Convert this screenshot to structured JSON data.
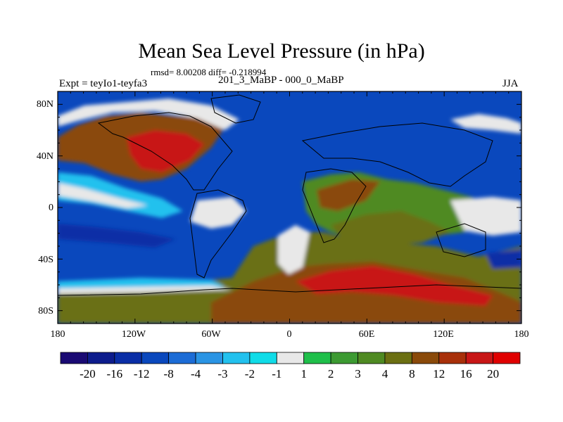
{
  "title": "Mean Sea Level Pressure (in hPa)",
  "stats": "rmsd= 8.00208 diff= -0.218994",
  "subtitle": "201_3_MaBP - 000_0_MaBP",
  "experiment": "Expt = teyIo1-teyfa3",
  "season": "JJA",
  "lat_labels": [
    "80N",
    "40N",
    "0",
    "40S",
    "80S"
  ],
  "lon_labels": [
    "180",
    "120W",
    "60W",
    "0",
    "60E",
    "120E",
    "180"
  ],
  "colorbar": {
    "labels": [
      "-20",
      "-16",
      "-12",
      "-8",
      "-4",
      "-3",
      "-2",
      "-1",
      "1",
      "2",
      "3",
      "4",
      "8",
      "12",
      "16",
      "20"
    ],
    "colors": [
      "#1a0a73",
      "#0d1c8c",
      "#0a2ea6",
      "#0a48bd",
      "#1c6cd6",
      "#2a94e4",
      "#22c1ee",
      "#10dce8",
      "#e8e8e8",
      "#1fbf4a",
      "#3c9a32",
      "#4f8a22",
      "#6b6f12",
      "#8a4a0a",
      "#a8300a",
      "#c81616",
      "#e00000"
    ]
  },
  "colors": {
    "land_outline": "#000000",
    "frame": "#000000"
  }
}
